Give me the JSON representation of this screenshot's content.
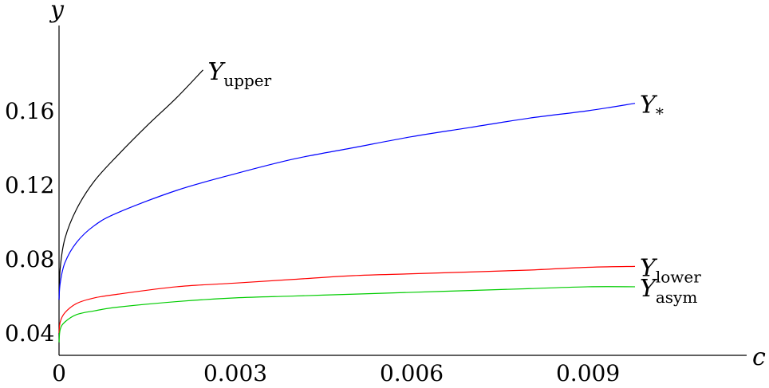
{
  "chart_data": {
    "type": "line",
    "xlabel": "c",
    "ylabel": "y",
    "xlim": [
      0,
      0.0117
    ],
    "ylim": [
      0.028,
      0.206
    ],
    "xticks": [
      {
        "value": 0,
        "label": "0"
      },
      {
        "value": 0.003,
        "label": "0.003"
      },
      {
        "value": 0.006,
        "label": "0.006"
      },
      {
        "value": 0.009,
        "label": "0.009"
      }
    ],
    "yticks": [
      {
        "value": 0.04,
        "label": "0.04"
      },
      {
        "value": 0.08,
        "label": "0.08"
      },
      {
        "value": 0.12,
        "label": "0.12"
      },
      {
        "value": 0.16,
        "label": "0.16"
      }
    ],
    "grid": false,
    "series": [
      {
        "name": "Y_upper",
        "label_base": "Y",
        "label_sub": "upper",
        "color": "#000000",
        "x": [
          0,
          2e-05,
          0.0001,
          0.0003,
          0.0006,
          0.001,
          0.0015,
          0.002,
          0.00245
        ],
        "y": [
          0.058,
          0.075,
          0.091,
          0.107,
          0.122,
          0.136,
          0.152,
          0.167,
          0.182
        ]
      },
      {
        "name": "Y_*",
        "label_base": "Y",
        "label_sub": "*",
        "color": "#0000ff",
        "x": [
          0,
          2e-05,
          0.0001,
          0.0003,
          0.0006,
          0.001,
          0.002,
          0.003,
          0.004,
          0.005,
          0.006,
          0.007,
          0.008,
          0.009,
          0.0098
        ],
        "y": [
          0.058,
          0.067,
          0.078,
          0.089,
          0.098,
          0.105,
          0.117,
          0.126,
          0.134,
          0.14,
          0.146,
          0.151,
          0.156,
          0.16,
          0.164
        ]
      },
      {
        "name": "Y_lower",
        "label_base": "Y",
        "label_sub": "lower",
        "color": "#ff0000",
        "x": [
          0,
          2e-05,
          0.0001,
          0.0003,
          0.0006,
          0.001,
          0.002,
          0.003,
          0.004,
          0.005,
          0.006,
          0.007,
          0.008,
          0.009,
          0.0098
        ],
        "y": [
          0.04,
          0.046,
          0.051,
          0.056,
          0.059,
          0.061,
          0.065,
          0.067,
          0.069,
          0.071,
          0.072,
          0.073,
          0.074,
          0.0755,
          0.076
        ]
      },
      {
        "name": "Y_asym",
        "label_base": "Y",
        "label_sub": "asym",
        "color": "#00cc00",
        "x": [
          0,
          2e-05,
          0.0001,
          0.0003,
          0.0006,
          0.001,
          0.002,
          0.003,
          0.004,
          0.005,
          0.006,
          0.007,
          0.008,
          0.009,
          0.0098
        ],
        "y": [
          0.035,
          0.042,
          0.046,
          0.05,
          0.052,
          0.054,
          0.057,
          0.059,
          0.06,
          0.061,
          0.062,
          0.063,
          0.064,
          0.065,
          0.065
        ]
      }
    ]
  }
}
